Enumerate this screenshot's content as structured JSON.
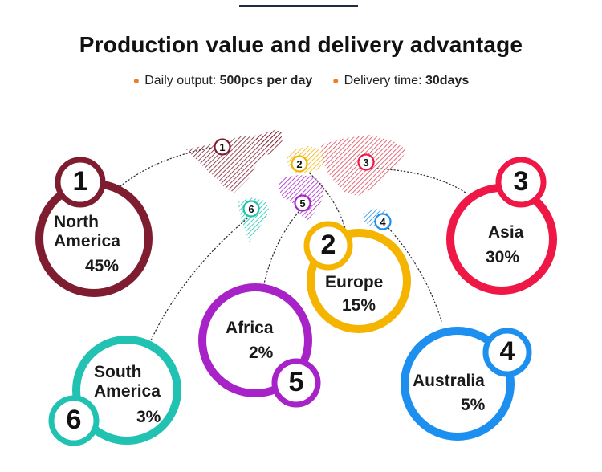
{
  "header": {
    "title": "Production value and delivery advantage",
    "output_label": "Daily output:",
    "output_value": "500pcs per day",
    "delivery_label": "Delivery time:",
    "delivery_value": "30days",
    "bullet_color": "#e8802a"
  },
  "regions": [
    {
      "num": "1",
      "name_line1": "North",
      "name_line2": "America",
      "pct": "45%",
      "color": "#7e1d30"
    },
    {
      "num": "2",
      "name_line1": "Europe",
      "name_line2": "",
      "pct": "15%",
      "color": "#f4b400"
    },
    {
      "num": "3",
      "name_line1": "Asia",
      "name_line2": "",
      "pct": "30%",
      "color": "#ee1745"
    },
    {
      "num": "4",
      "name_line1": "Australia",
      "name_line2": "",
      "pct": "5%",
      "color": "#1c8fef"
    },
    {
      "num": "5",
      "name_line1": "Africa",
      "name_line2": "",
      "pct": "2%",
      "color": "#a823c7"
    },
    {
      "num": "6",
      "name_line1": "South",
      "name_line2": "America",
      "pct": "3%",
      "color": "#21c2b1"
    }
  ]
}
